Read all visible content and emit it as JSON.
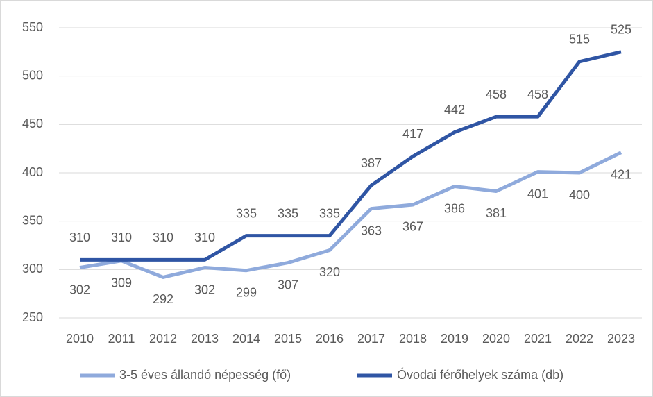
{
  "chart_data": {
    "type": "line",
    "categories": [
      "2010",
      "2011",
      "2012",
      "2013",
      "2014",
      "2015",
      "2016",
      "2017",
      "2018",
      "2019",
      "2020",
      "2021",
      "2022",
      "2023"
    ],
    "series": [
      {
        "name": "3-5 éves állandó népesség (fő)",
        "color": "#8faadc",
        "values": [
          302,
          309,
          292,
          302,
          299,
          307,
          320,
          363,
          367,
          386,
          381,
          401,
          400,
          421
        ]
      },
      {
        "name": "Óvodai férőhelyek száma (db)",
        "color": "#2f55a4",
        "values": [
          310,
          310,
          310,
          310,
          335,
          335,
          335,
          387,
          417,
          442,
          458,
          458,
          515,
          525
        ]
      }
    ],
    "ylim": [
      250,
      550
    ],
    "yticks": [
      250,
      300,
      350,
      400,
      450,
      500,
      550
    ],
    "grid": true,
    "legend": "bottom"
  }
}
